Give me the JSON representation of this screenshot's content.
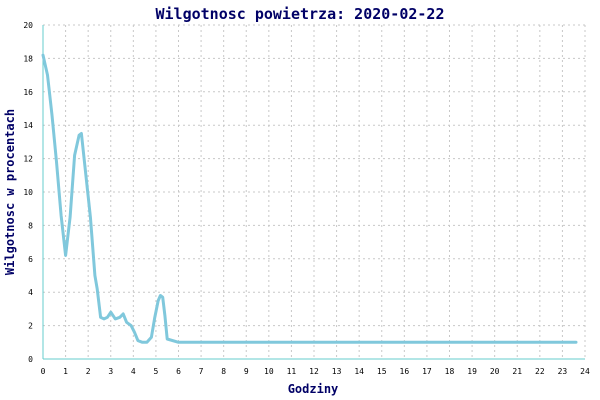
{
  "chart_data": {
    "type": "line",
    "title": "Wilgotnosc powietrza: 2020-02-22",
    "xlabel": "Godziny",
    "ylabel": "Wilgotnosc w procentach",
    "xlim": [
      0,
      24
    ],
    "ylim": [
      0,
      20
    ],
    "x_ticks": [
      0,
      1,
      2,
      3,
      4,
      5,
      6,
      7,
      8,
      9,
      10,
      11,
      12,
      13,
      14,
      15,
      16,
      17,
      18,
      19,
      20,
      21,
      22,
      23,
      24
    ],
    "y_ticks": [
      0,
      2,
      4,
      6,
      8,
      10,
      12,
      14,
      16,
      18,
      20
    ],
    "grid": true,
    "series_color": "#80c8dc",
    "series": [
      {
        "x": [
          0,
          0.2,
          0.4,
          0.6,
          0.8,
          1.0,
          1.2,
          1.4,
          1.6,
          1.7,
          1.9,
          2.1,
          2.3,
          2.4,
          2.55,
          2.7,
          2.85,
          3.0,
          3.2,
          3.4,
          3.55,
          3.7,
          3.9,
          4.05,
          4.2,
          4.4,
          4.6,
          4.8,
          4.95,
          5.1,
          5.2,
          5.3,
          5.4,
          5.5,
          6.0,
          8,
          12,
          16,
          20,
          23.6
        ],
        "y": [
          18.2,
          17,
          14.6,
          11.8,
          8.6,
          6.2,
          8.5,
          12.2,
          13.4,
          13.5,
          11,
          8.5,
          5,
          4.2,
          2.5,
          2.4,
          2.5,
          2.8,
          2.4,
          2.5,
          2.7,
          2.2,
          2.0,
          1.6,
          1.1,
          1.0,
          1.0,
          1.3,
          2.5,
          3.5,
          3.8,
          3.7,
          2.6,
          1.2,
          1.0,
          1.0,
          1.0,
          1.0,
          1.0,
          1.0
        ]
      }
    ]
  }
}
